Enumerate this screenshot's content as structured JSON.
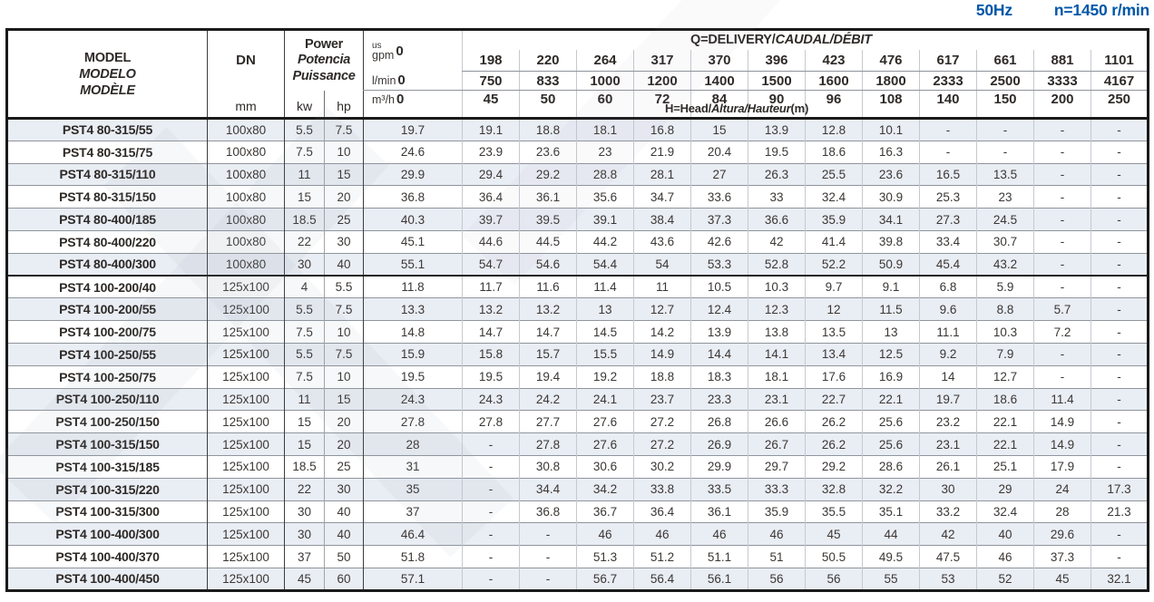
{
  "title": {
    "frequency": "50Hz",
    "speed": "n=1450 r/min"
  },
  "header": {
    "model": [
      "MODEL",
      "MODELO",
      "MODÈLE"
    ],
    "dn_label": "DN",
    "dn_unit": "mm",
    "power": [
      "Power",
      "Potencia",
      "Puissance"
    ],
    "power_units": {
      "kw": "kw",
      "hp": "hp"
    },
    "delivery_plain": "Q=DELIVERY/",
    "delivery_italic": "CAUDAL/DÉBIT",
    "head_note_plain": "H=Head/",
    "head_note_italic": "Altura/Hauteur",
    "head_note_unit": "(m)",
    "zero": "0",
    "units": {
      "gpm_top": "us",
      "gpm": "gpm",
      "lmin": "l/min",
      "m3h": "m³/h"
    },
    "flow": {
      "gpm": [
        "198",
        "220",
        "264",
        "317",
        "370",
        "396",
        "423",
        "476",
        "617",
        "661",
        "881",
        "1101"
      ],
      "lmin": [
        "750",
        "833",
        "1000",
        "1200",
        "1400",
        "1500",
        "1600",
        "1800",
        "2333",
        "2500",
        "3333",
        "4167"
      ],
      "m3h": [
        "45",
        "50",
        "60",
        "72",
        "84",
        "90",
        "96",
        "108",
        "140",
        "150",
        "200",
        "250"
      ]
    }
  },
  "rows": [
    {
      "model": "PST4 80-315/55",
      "dn": "100x80",
      "kw": "5.5",
      "hp": "7.5",
      "values": [
        "19.7",
        "19.1",
        "18.8",
        "18.1",
        "16.8",
        "15",
        "13.9",
        "12.8",
        "10.1",
        "-",
        "-",
        "-",
        "-"
      ]
    },
    {
      "model": "PST4 80-315/75",
      "dn": "100x80",
      "kw": "7.5",
      "hp": "10",
      "values": [
        "24.6",
        "23.9",
        "23.6",
        "23",
        "21.9",
        "20.4",
        "19.5",
        "18.6",
        "16.3",
        "-",
        "-",
        "-",
        "-"
      ]
    },
    {
      "model": "PST4 80-315/110",
      "dn": "100x80",
      "kw": "11",
      "hp": "15",
      "values": [
        "29.9",
        "29.4",
        "29.2",
        "28.8",
        "28.1",
        "27",
        "26.3",
        "25.5",
        "23.6",
        "16.5",
        "13.5",
        "-",
        "-"
      ]
    },
    {
      "model": "PST4 80-315/150",
      "dn": "100x80",
      "kw": "15",
      "hp": "20",
      "values": [
        "36.8",
        "36.4",
        "36.1",
        "35.6",
        "34.7",
        "33.6",
        "33",
        "32.4",
        "30.9",
        "25.3",
        "23",
        "-",
        "-"
      ]
    },
    {
      "model": "PST4 80-400/185",
      "dn": "100x80",
      "kw": "18.5",
      "hp": "25",
      "values": [
        "40.3",
        "39.7",
        "39.5",
        "39.1",
        "38.4",
        "37.3",
        "36.6",
        "35.9",
        "34.1",
        "27.3",
        "24.5",
        "-",
        "-"
      ]
    },
    {
      "model": "PST4 80-400/220",
      "dn": "100x80",
      "kw": "22",
      "hp": "30",
      "values": [
        "45.1",
        "44.6",
        "44.5",
        "44.2",
        "43.6",
        "42.6",
        "42",
        "41.4",
        "39.8",
        "33.4",
        "30.7",
        "-",
        "-"
      ]
    },
    {
      "model": "PST4 80-400/300",
      "dn": "100x80",
      "kw": "30",
      "hp": "40",
      "values": [
        "55.1",
        "54.7",
        "54.6",
        "54.4",
        "54",
        "53.3",
        "52.8",
        "52.2",
        "50.9",
        "45.4",
        "43.2",
        "-",
        "-"
      ]
    },
    {
      "model": "PST4 100-200/40",
      "dn": "125x100",
      "kw": "4",
      "hp": "5.5",
      "values": [
        "11.8",
        "11.7",
        "11.6",
        "11.4",
        "11",
        "10.5",
        "10.3",
        "9.7",
        "9.1",
        "6.8",
        "5.9",
        "-",
        "-"
      ]
    },
    {
      "model": "PST4 100-200/55",
      "dn": "125x100",
      "kw": "5.5",
      "hp": "7.5",
      "values": [
        "13.3",
        "13.2",
        "13.2",
        "13",
        "12.7",
        "12.4",
        "12.3",
        "12",
        "11.5",
        "9.6",
        "8.8",
        "5.7",
        "-"
      ]
    },
    {
      "model": "PST4 100-200/75",
      "dn": "125x100",
      "kw": "7.5",
      "hp": "10",
      "values": [
        "14.8",
        "14.7",
        "14.7",
        "14.5",
        "14.2",
        "13.9",
        "13.8",
        "13.5",
        "13",
        "11.1",
        "10.3",
        "7.2",
        "-"
      ]
    },
    {
      "model": "PST4 100-250/55",
      "dn": "125x100",
      "kw": "5.5",
      "hp": "7.5",
      "values": [
        "15.9",
        "15.8",
        "15.7",
        "15.5",
        "14.9",
        "14.4",
        "14.1",
        "13.4",
        "12.5",
        "9.2",
        "7.9",
        "-",
        "-"
      ]
    },
    {
      "model": "PST4 100-250/75",
      "dn": "125x100",
      "kw": "7.5",
      "hp": "10",
      "values": [
        "19.5",
        "19.5",
        "19.4",
        "19.2",
        "18.8",
        "18.3",
        "18.1",
        "17.6",
        "16.9",
        "14",
        "12.7",
        "-",
        "-"
      ]
    },
    {
      "model": "PST4 100-250/110",
      "dn": "125x100",
      "kw": "11",
      "hp": "15",
      "values": [
        "24.3",
        "24.3",
        "24.2",
        "24.1",
        "23.7",
        "23.3",
        "23.1",
        "22.7",
        "22.1",
        "19.7",
        "18.6",
        "11.4",
        "-"
      ]
    },
    {
      "model": "PST4 100-250/150",
      "dn": "125x100",
      "kw": "15",
      "hp": "20",
      "values": [
        "27.8",
        "27.8",
        "27.7",
        "27.6",
        "27.2",
        "26.8",
        "26.6",
        "26.2",
        "25.6",
        "23.2",
        "22.1",
        "14.9",
        "-"
      ]
    },
    {
      "model": "PST4 100-315/150",
      "dn": "125x100",
      "kw": "15",
      "hp": "20",
      "values": [
        "28",
        "-",
        "27.8",
        "27.6",
        "27.2",
        "26.9",
        "26.7",
        "26.2",
        "25.6",
        "23.1",
        "22.1",
        "14.9",
        "-"
      ]
    },
    {
      "model": "PST4 100-315/185",
      "dn": "125x100",
      "kw": "18.5",
      "hp": "25",
      "values": [
        "31",
        "-",
        "30.8",
        "30.6",
        "30.2",
        "29.9",
        "29.7",
        "29.2",
        "28.6",
        "26.1",
        "25.1",
        "17.9",
        "-"
      ]
    },
    {
      "model": "PST4 100-315/220",
      "dn": "125x100",
      "kw": "22",
      "hp": "30",
      "values": [
        "35",
        "-",
        "34.4",
        "34.2",
        "33.8",
        "33.5",
        "33.3",
        "32.8",
        "32.2",
        "30",
        "29",
        "24",
        "17.3"
      ]
    },
    {
      "model": "PST4 100-315/300",
      "dn": "125x100",
      "kw": "30",
      "hp": "40",
      "values": [
        "37",
        "-",
        "36.8",
        "36.7",
        "36.4",
        "36.1",
        "35.9",
        "35.5",
        "35.1",
        "33.2",
        "32.4",
        "28",
        "21.3"
      ]
    },
    {
      "model": "PST4 100-400/300",
      "dn": "125x100",
      "kw": "30",
      "hp": "40",
      "values": [
        "46.4",
        "-",
        "-",
        "46",
        "46",
        "46",
        "46",
        "45",
        "44",
        "42",
        "40",
        "29.6",
        "-"
      ]
    },
    {
      "model": "PST4 100-400/370",
      "dn": "125x100",
      "kw": "37",
      "hp": "50",
      "values": [
        "51.8",
        "-",
        "-",
        "51.3",
        "51.2",
        "51.1",
        "51",
        "50.5",
        "49.5",
        "47.5",
        "46",
        "37.3",
        "-"
      ]
    },
    {
      "model": "PST4 100-400/450",
      "dn": "125x100",
      "kw": "45",
      "hp": "60",
      "values": [
        "57.1",
        "-",
        "-",
        "56.7",
        "56.4",
        "56.1",
        "56",
        "56",
        "55",
        "53",
        "52",
        "45",
        "32.1"
      ]
    }
  ],
  "group_start_index": 7,
  "colors": {
    "accent_blue": "#0057a8",
    "row_shade": "#e9edf4",
    "border_dark": "#1a1a1a"
  }
}
